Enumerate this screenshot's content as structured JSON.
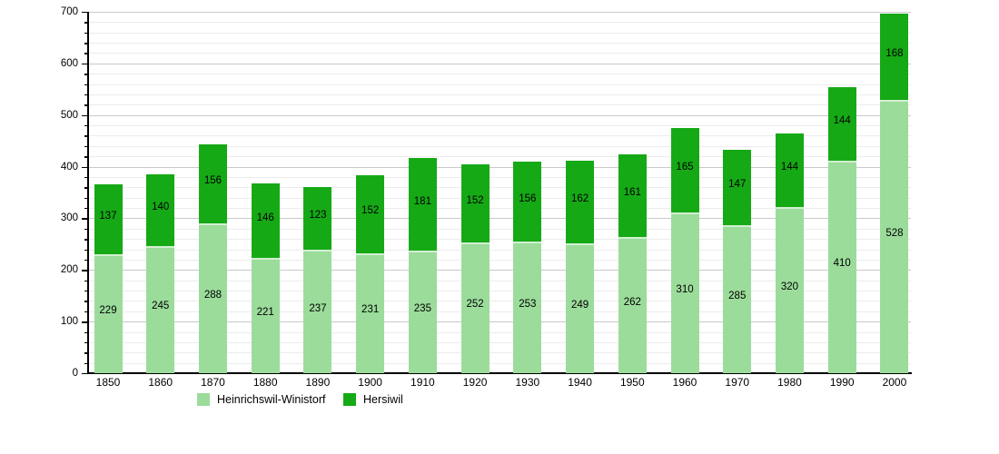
{
  "chart_data": {
    "type": "bar",
    "stacked": true,
    "categories": [
      "1850",
      "1860",
      "1870",
      "1880",
      "1890",
      "1900",
      "1910",
      "1920",
      "1930",
      "1940",
      "1950",
      "1960",
      "1970",
      "1980",
      "1990",
      "2000"
    ],
    "series": [
      {
        "name": "Heinrichswil-Winistorf",
        "color": "#9bdc9b",
        "values": [
          229,
          245,
          288,
          221,
          237,
          231,
          235,
          252,
          253,
          249,
          262,
          310,
          285,
          320,
          410,
          528
        ]
      },
      {
        "name": "Hersiwil",
        "color": "#16a916",
        "values": [
          137,
          140,
          156,
          146,
          123,
          152,
          181,
          152,
          156,
          162,
          161,
          165,
          147,
          144,
          144,
          168
        ]
      }
    ],
    "ylim": [
      0,
      700
    ],
    "y_tick_labels": [
      "0",
      "100",
      "200",
      "300",
      "400",
      "500",
      "600",
      "700"
    ],
    "y_major_step": 100,
    "y_minor_step": 20,
    "grid": true,
    "value_labels": "inside-segments",
    "legend_position": "bottom-left",
    "colors": {
      "background": "#ffffff",
      "grid_major": "#c9c9c9",
      "grid_minor": "#ececec",
      "axis": "#000000",
      "label_text": "#000000",
      "segment_divider": "#d2efd2"
    }
  }
}
